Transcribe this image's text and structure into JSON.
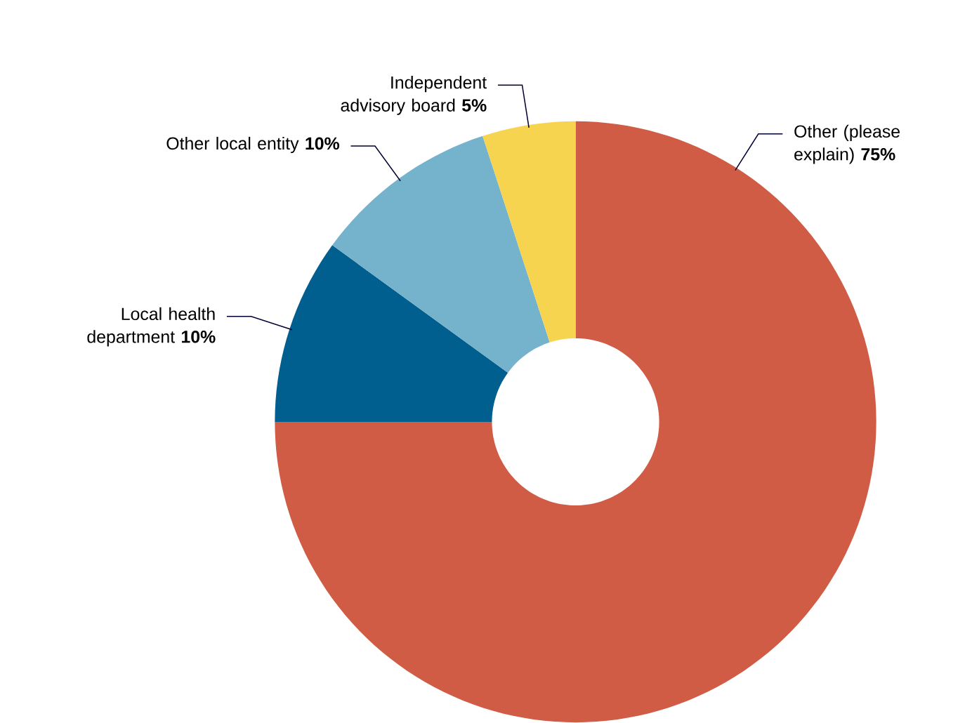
{
  "chart_data": {
    "type": "donut",
    "categories": [
      "Other (please explain)",
      "Local health department",
      "Other local entity",
      "Independent advisory board"
    ],
    "values": [
      75,
      10,
      10,
      5
    ],
    "colors": [
      "#d05c45",
      "#005f8f",
      "#75b2cb",
      "#f7d44f"
    ],
    "value_labels": [
      "75%",
      "10%",
      "10%",
      "5%"
    ]
  }
}
